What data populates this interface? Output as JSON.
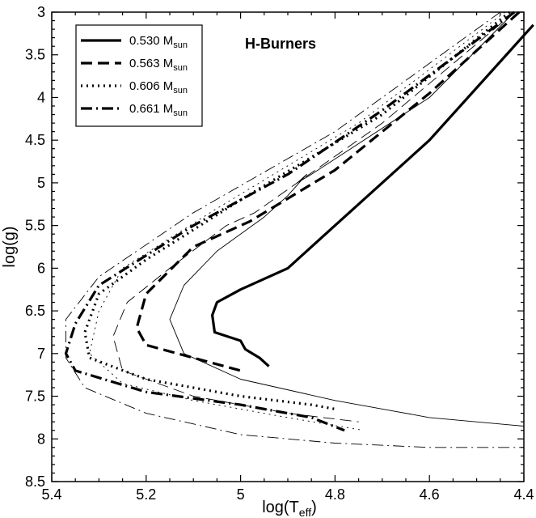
{
  "chart_data": {
    "type": "line",
    "title": "",
    "annotation": "H-Burners",
    "xlabel": {
      "main": "log(T",
      "sub": "eff",
      "close": ")"
    },
    "ylabel": "log(g)",
    "xlim": [
      5.4,
      4.4
    ],
    "ylim": [
      8.5,
      3
    ],
    "x_ticks": [
      "5.4",
      "5.2",
      "5",
      "4.8",
      "4.6",
      "4.4"
    ],
    "y_ticks": [
      "3",
      "3.5",
      "4",
      "4.5",
      "5",
      "5.5",
      "6",
      "6.5",
      "7",
      "7.5",
      "8",
      "8.5"
    ],
    "grid": false,
    "legend_position": "top-left",
    "series": [
      {
        "name": "0.530 M",
        "sub": "sun",
        "dash": "solid",
        "thick": [
          [
            4.38,
            3.15
          ],
          [
            4.6,
            4.5
          ],
          [
            4.8,
            5.5
          ],
          [
            4.9,
            6.0
          ],
          [
            5.0,
            6.25
          ],
          [
            5.05,
            6.4
          ],
          [
            5.06,
            6.55
          ],
          [
            5.055,
            6.75
          ],
          [
            5.0,
            6.85
          ],
          [
            4.99,
            6.95
          ],
          [
            4.96,
            7.05
          ],
          [
            4.94,
            7.15
          ]
        ],
        "thin": [
          [
            4.42,
            3.0
          ],
          [
            4.6,
            4.0
          ],
          [
            4.85,
            4.9
          ],
          [
            4.88,
            5.0
          ],
          [
            4.86,
            4.9
          ],
          [
            4.9,
            5.15
          ],
          [
            4.95,
            5.4
          ],
          [
            5.05,
            5.8
          ],
          [
            5.12,
            6.2
          ],
          [
            5.15,
            6.6
          ],
          [
            5.12,
            7.0
          ],
          [
            5.0,
            7.3
          ],
          [
            4.8,
            7.55
          ],
          [
            4.6,
            7.75
          ],
          [
            4.4,
            7.85
          ]
        ]
      },
      {
        "name": "0.563 M",
        "sub": "sun",
        "dash": "dashed",
        "thick": [
          [
            4.41,
            3.0
          ],
          [
            4.6,
            3.95
          ],
          [
            4.8,
            4.85
          ],
          [
            4.98,
            5.45
          ],
          [
            5.1,
            5.75
          ],
          [
            5.2,
            6.3
          ],
          [
            5.22,
            6.7
          ],
          [
            5.2,
            6.9
          ],
          [
            5.1,
            7.05
          ],
          [
            5.0,
            7.2
          ],
          [
            5.0,
            7.25
          ]
        ],
        "thin": [
          [
            4.42,
            3.0
          ],
          [
            4.7,
            4.3
          ],
          [
            4.97,
            5.35
          ],
          [
            5.03,
            5.5
          ],
          [
            5.15,
            6.0
          ],
          [
            5.24,
            6.4
          ],
          [
            5.27,
            6.8
          ],
          [
            5.25,
            7.2
          ],
          [
            5.1,
            7.5
          ],
          [
            4.9,
            7.7
          ],
          [
            4.75,
            7.8
          ]
        ]
      },
      {
        "name": "0.606 M",
        "sub": "sun",
        "dash": "dotted",
        "thick": [
          [
            4.43,
            3.0
          ],
          [
            4.7,
            4.2
          ],
          [
            5.0,
            5.2
          ],
          [
            5.2,
            5.9
          ],
          [
            5.3,
            6.3
          ],
          [
            5.33,
            6.75
          ],
          [
            5.32,
            7.05
          ],
          [
            5.2,
            7.3
          ],
          [
            5.0,
            7.5
          ],
          [
            4.85,
            7.6
          ],
          [
            4.8,
            7.65
          ]
        ],
        "thin": [
          [
            4.44,
            3.0
          ],
          [
            4.75,
            4.3
          ],
          [
            5.05,
            5.3
          ],
          [
            5.25,
            6.0
          ],
          [
            5.3,
            6.5
          ],
          [
            5.32,
            7.0
          ],
          [
            5.25,
            7.35
          ],
          [
            5.1,
            7.55
          ],
          [
            4.9,
            7.75
          ],
          [
            4.74,
            7.9
          ]
        ]
      },
      {
        "name": "0.661 M",
        "sub": "sun",
        "dash": "dashdot",
        "thick": [
          [
            4.42,
            3.0
          ],
          [
            4.7,
            4.15
          ],
          [
            4.9,
            4.9
          ],
          [
            5.1,
            5.5
          ],
          [
            5.3,
            6.2
          ],
          [
            5.35,
            6.65
          ],
          [
            5.37,
            7.0
          ],
          [
            5.35,
            7.2
          ],
          [
            5.2,
            7.45
          ],
          [
            5.0,
            7.6
          ],
          [
            4.85,
            7.75
          ],
          [
            4.78,
            7.9
          ]
        ],
        "thin": [
          [
            4.45,
            3.0
          ],
          [
            4.8,
            4.4
          ],
          [
            5.1,
            5.35
          ],
          [
            5.3,
            6.1
          ],
          [
            5.37,
            6.6
          ],
          [
            5.37,
            7.05
          ],
          [
            5.33,
            7.4
          ],
          [
            5.2,
            7.7
          ],
          [
            5.0,
            7.95
          ],
          [
            4.8,
            8.05
          ],
          [
            4.6,
            8.1
          ],
          [
            4.4,
            8.1
          ]
        ]
      }
    ]
  }
}
